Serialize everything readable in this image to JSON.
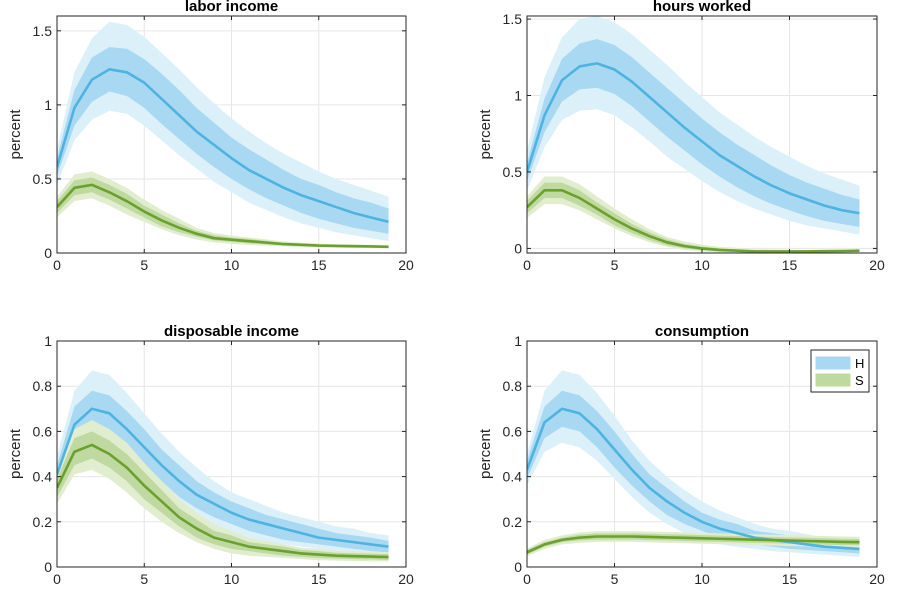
{
  "figure": {
    "colors": {
      "H_line": "#4fb3e0",
      "H_band_inner": "#a9d9f2",
      "H_band_outer": "#dcf0fa",
      "S_line": "#6aa12e",
      "S_band_inner": "#bfd9a0",
      "S_band_outer": "#e1edcf",
      "grid": "#e6e6e6",
      "axis": "#262626"
    },
    "legend": {
      "entries": [
        "H",
        "S"
      ],
      "panel": 3,
      "placement": "top-right"
    }
  },
  "chart_data": [
    {
      "type": "line",
      "title": "labor income",
      "ylabel": "percent",
      "xlim": [
        0,
        20
      ],
      "ylim": [
        0,
        1.6
      ],
      "xticks": [
        0,
        5,
        10,
        15,
        20
      ],
      "yticks": [
        0,
        0.5,
        1,
        1.5
      ],
      "ytick_labels": [
        "0",
        "0.5",
        "1",
        "1.5"
      ],
      "grid": true,
      "x": [
        0,
        1,
        2,
        3,
        4,
        5,
        6,
        7,
        8,
        9,
        10,
        11,
        12,
        13,
        14,
        15,
        16,
        17,
        18,
        19
      ],
      "series": [
        {
          "name": "H",
          "mean": [
            0.58,
            0.98,
            1.17,
            1.24,
            1.22,
            1.15,
            1.04,
            0.93,
            0.82,
            0.73,
            0.64,
            0.56,
            0.5,
            0.44,
            0.39,
            0.35,
            0.31,
            0.27,
            0.24,
            0.21
          ],
          "inner_lo": [
            0.52,
            0.86,
            1.02,
            1.09,
            1.06,
            0.98,
            0.87,
            0.77,
            0.67,
            0.58,
            0.5,
            0.43,
            0.37,
            0.32,
            0.27,
            0.23,
            0.2,
            0.17,
            0.15,
            0.13
          ],
          "inner_hi": [
            0.64,
            1.1,
            1.32,
            1.39,
            1.38,
            1.31,
            1.21,
            1.1,
            0.98,
            0.88,
            0.78,
            0.7,
            0.63,
            0.56,
            0.5,
            0.46,
            0.41,
            0.37,
            0.34,
            0.3
          ],
          "outer_lo": [
            0.46,
            0.76,
            0.9,
            0.96,
            0.94,
            0.86,
            0.76,
            0.66,
            0.57,
            0.48,
            0.41,
            0.34,
            0.29,
            0.24,
            0.2,
            0.17,
            0.14,
            0.12,
            0.1,
            0.08
          ],
          "outer_hi": [
            0.7,
            1.22,
            1.45,
            1.56,
            1.54,
            1.46,
            1.35,
            1.24,
            1.12,
            1.01,
            0.91,
            0.82,
            0.74,
            0.67,
            0.61,
            0.55,
            0.5,
            0.46,
            0.42,
            0.38
          ]
        },
        {
          "name": "S",
          "mean": [
            0.31,
            0.44,
            0.46,
            0.41,
            0.35,
            0.28,
            0.22,
            0.17,
            0.13,
            0.1,
            0.09,
            0.08,
            0.07,
            0.06,
            0.055,
            0.05,
            0.048,
            0.046,
            0.044,
            0.042
          ],
          "inner_lo": [
            0.27,
            0.39,
            0.41,
            0.36,
            0.3,
            0.24,
            0.18,
            0.14,
            0.11,
            0.085,
            0.075,
            0.065,
            0.058,
            0.051,
            0.047,
            0.043,
            0.041,
            0.039,
            0.037,
            0.036
          ],
          "inner_hi": [
            0.35,
            0.49,
            0.51,
            0.46,
            0.4,
            0.32,
            0.26,
            0.2,
            0.15,
            0.12,
            0.105,
            0.095,
            0.082,
            0.069,
            0.063,
            0.057,
            0.055,
            0.053,
            0.051,
            0.048
          ],
          "outer_lo": [
            0.24,
            0.35,
            0.37,
            0.32,
            0.26,
            0.21,
            0.16,
            0.12,
            0.09,
            0.072,
            0.062,
            0.055,
            0.049,
            0.044,
            0.041,
            0.038,
            0.036,
            0.034,
            0.032,
            0.031
          ],
          "outer_hi": [
            0.38,
            0.53,
            0.55,
            0.5,
            0.44,
            0.36,
            0.29,
            0.23,
            0.17,
            0.135,
            0.118,
            0.105,
            0.092,
            0.078,
            0.07,
            0.063,
            0.06,
            0.058,
            0.056,
            0.053
          ]
        }
      ]
    },
    {
      "type": "line",
      "title": "hours worked",
      "ylabel": "percent",
      "xlim": [
        0,
        20
      ],
      "ylim": [
        -0.03,
        1.52
      ],
      "xticks": [
        0,
        5,
        10,
        15,
        20
      ],
      "yticks": [
        0,
        0.5,
        1,
        1.5
      ],
      "ytick_labels": [
        "0",
        "0.5",
        "1",
        "1.5"
      ],
      "grid": true,
      "x": [
        0,
        1,
        2,
        3,
        4,
        5,
        6,
        7,
        8,
        9,
        10,
        11,
        12,
        13,
        14,
        15,
        16,
        17,
        18,
        19
      ],
      "series": [
        {
          "name": "H",
          "mean": [
            0.5,
            0.87,
            1.1,
            1.19,
            1.21,
            1.17,
            1.09,
            0.99,
            0.89,
            0.79,
            0.7,
            0.61,
            0.54,
            0.47,
            0.41,
            0.36,
            0.32,
            0.28,
            0.25,
            0.23
          ],
          "inner_lo": [
            0.44,
            0.76,
            0.96,
            1.04,
            1.05,
            1.01,
            0.93,
            0.83,
            0.73,
            0.64,
            0.55,
            0.47,
            0.4,
            0.34,
            0.29,
            0.25,
            0.21,
            0.18,
            0.16,
            0.14
          ],
          "inner_hi": [
            0.56,
            0.98,
            1.24,
            1.34,
            1.37,
            1.33,
            1.25,
            1.15,
            1.05,
            0.95,
            0.85,
            0.76,
            0.68,
            0.61,
            0.54,
            0.48,
            0.43,
            0.39,
            0.35,
            0.32
          ],
          "outer_lo": [
            0.38,
            0.66,
            0.84,
            0.9,
            0.91,
            0.87,
            0.79,
            0.7,
            0.6,
            0.52,
            0.44,
            0.37,
            0.31,
            0.26,
            0.22,
            0.18,
            0.15,
            0.13,
            0.11,
            0.09
          ],
          "outer_hi": [
            0.64,
            1.12,
            1.38,
            1.5,
            1.52,
            1.48,
            1.4,
            1.3,
            1.2,
            1.09,
            0.99,
            0.89,
            0.81,
            0.73,
            0.66,
            0.6,
            0.54,
            0.49,
            0.45,
            0.41
          ]
        },
        {
          "name": "S",
          "mean": [
            0.27,
            0.38,
            0.38,
            0.33,
            0.26,
            0.19,
            0.13,
            0.08,
            0.04,
            0.015,
            0.0,
            -0.01,
            -0.015,
            -0.02,
            -0.02,
            -0.02,
            -0.02,
            -0.018,
            -0.017,
            -0.015
          ],
          "inner_lo": [
            0.23,
            0.33,
            0.33,
            0.28,
            0.22,
            0.15,
            0.1,
            0.055,
            0.02,
            0.0,
            -0.012,
            -0.02,
            -0.024,
            -0.027,
            -0.027,
            -0.026,
            -0.025,
            -0.023,
            -0.022,
            -0.02
          ],
          "inner_hi": [
            0.31,
            0.43,
            0.43,
            0.38,
            0.3,
            0.23,
            0.16,
            0.105,
            0.06,
            0.03,
            0.012,
            0.0,
            -0.006,
            -0.013,
            -0.013,
            -0.014,
            -0.015,
            -0.013,
            -0.012,
            -0.01
          ],
          "outer_lo": [
            0.2,
            0.29,
            0.29,
            0.25,
            0.19,
            0.13,
            0.08,
            0.04,
            0.01,
            -0.01,
            -0.02,
            -0.027,
            -0.03,
            -0.03,
            -0.03,
            -0.03,
            -0.03,
            -0.027,
            -0.026,
            -0.024
          ],
          "outer_hi": [
            0.34,
            0.47,
            0.47,
            0.42,
            0.34,
            0.26,
            0.19,
            0.125,
            0.075,
            0.045,
            0.025,
            0.01,
            0.004,
            -0.006,
            -0.007,
            -0.009,
            -0.01,
            -0.009,
            -0.008,
            -0.006
          ]
        }
      ]
    },
    {
      "type": "line",
      "title": "disposable income",
      "ylabel": "percent",
      "xlim": [
        0,
        20
      ],
      "ylim": [
        0,
        1
      ],
      "xticks": [
        0,
        5,
        10,
        15,
        20
      ],
      "yticks": [
        0,
        0.2,
        0.4,
        0.6,
        0.8,
        1
      ],
      "ytick_labels": [
        "0",
        "0.2",
        "0.4",
        "0.6",
        "0.8",
        "1"
      ],
      "grid": true,
      "x": [
        0,
        1,
        2,
        3,
        4,
        5,
        6,
        7,
        8,
        9,
        10,
        11,
        12,
        13,
        14,
        15,
        16,
        17,
        18,
        19
      ],
      "series": [
        {
          "name": "H",
          "mean": [
            0.41,
            0.63,
            0.7,
            0.68,
            0.61,
            0.53,
            0.45,
            0.38,
            0.32,
            0.28,
            0.24,
            0.21,
            0.19,
            0.17,
            0.15,
            0.13,
            0.12,
            0.11,
            0.1,
            0.09
          ],
          "inner_lo": [
            0.37,
            0.56,
            0.62,
            0.6,
            0.53,
            0.45,
            0.38,
            0.31,
            0.26,
            0.22,
            0.19,
            0.16,
            0.14,
            0.12,
            0.11,
            0.1,
            0.09,
            0.08,
            0.07,
            0.065
          ],
          "inner_hi": [
            0.45,
            0.71,
            0.78,
            0.76,
            0.69,
            0.61,
            0.52,
            0.45,
            0.38,
            0.33,
            0.29,
            0.26,
            0.23,
            0.21,
            0.19,
            0.17,
            0.15,
            0.14,
            0.13,
            0.115
          ],
          "outer_lo": [
            0.34,
            0.5,
            0.55,
            0.53,
            0.47,
            0.4,
            0.33,
            0.27,
            0.22,
            0.18,
            0.15,
            0.13,
            0.11,
            0.1,
            0.09,
            0.08,
            0.07,
            0.06,
            0.055,
            0.05
          ],
          "outer_hi": [
            0.49,
            0.78,
            0.87,
            0.85,
            0.77,
            0.68,
            0.59,
            0.51,
            0.44,
            0.38,
            0.33,
            0.3,
            0.27,
            0.24,
            0.22,
            0.2,
            0.18,
            0.17,
            0.15,
            0.14
          ]
        },
        {
          "name": "S",
          "mean": [
            0.35,
            0.51,
            0.54,
            0.5,
            0.44,
            0.36,
            0.29,
            0.22,
            0.17,
            0.13,
            0.11,
            0.09,
            0.08,
            0.07,
            0.06,
            0.055,
            0.05,
            0.048,
            0.046,
            0.044
          ],
          "inner_lo": [
            0.31,
            0.45,
            0.48,
            0.44,
            0.38,
            0.3,
            0.24,
            0.18,
            0.13,
            0.1,
            0.08,
            0.07,
            0.06,
            0.05,
            0.045,
            0.04,
            0.037,
            0.035,
            0.033,
            0.031
          ],
          "inner_hi": [
            0.39,
            0.57,
            0.6,
            0.56,
            0.5,
            0.42,
            0.34,
            0.26,
            0.21,
            0.16,
            0.14,
            0.11,
            0.1,
            0.09,
            0.075,
            0.07,
            0.063,
            0.061,
            0.059,
            0.057
          ],
          "outer_lo": [
            0.28,
            0.41,
            0.43,
            0.39,
            0.33,
            0.26,
            0.2,
            0.15,
            0.11,
            0.08,
            0.06,
            0.05,
            0.045,
            0.04,
            0.035,
            0.03,
            0.028,
            0.026,
            0.025,
            0.024
          ],
          "outer_hi": [
            0.42,
            0.61,
            0.65,
            0.61,
            0.55,
            0.46,
            0.38,
            0.3,
            0.24,
            0.19,
            0.16,
            0.13,
            0.115,
            0.1,
            0.085,
            0.08,
            0.072,
            0.07,
            0.067,
            0.064
          ]
        }
      ]
    },
    {
      "type": "line",
      "title": "consumption",
      "ylabel": "percent",
      "xlim": [
        0,
        20
      ],
      "ylim": [
        0,
        1
      ],
      "xticks": [
        0,
        5,
        10,
        15,
        20
      ],
      "yticks": [
        0,
        0.2,
        0.4,
        0.6,
        0.8,
        1
      ],
      "ytick_labels": [
        "0",
        "0.2",
        "0.4",
        "0.6",
        "0.8",
        "1"
      ],
      "grid": true,
      "legend": [
        "H",
        "S"
      ],
      "x": [
        0,
        1,
        2,
        3,
        4,
        5,
        6,
        7,
        8,
        9,
        10,
        11,
        12,
        13,
        14,
        15,
        16,
        17,
        18,
        19
      ],
      "series": [
        {
          "name": "H",
          "mean": [
            0.43,
            0.64,
            0.7,
            0.68,
            0.61,
            0.52,
            0.43,
            0.35,
            0.29,
            0.24,
            0.2,
            0.17,
            0.15,
            0.13,
            0.12,
            0.11,
            0.1,
            0.09,
            0.085,
            0.08
          ],
          "inner_lo": [
            0.39,
            0.57,
            0.62,
            0.6,
            0.53,
            0.44,
            0.36,
            0.29,
            0.23,
            0.19,
            0.16,
            0.13,
            0.11,
            0.1,
            0.09,
            0.08,
            0.075,
            0.07,
            0.065,
            0.06
          ],
          "inner_hi": [
            0.47,
            0.71,
            0.78,
            0.76,
            0.69,
            0.6,
            0.5,
            0.41,
            0.35,
            0.29,
            0.24,
            0.21,
            0.19,
            0.16,
            0.15,
            0.14,
            0.125,
            0.11,
            0.105,
            0.1
          ],
          "outer_lo": [
            0.36,
            0.51,
            0.55,
            0.53,
            0.47,
            0.39,
            0.31,
            0.24,
            0.19,
            0.15,
            0.12,
            0.1,
            0.09,
            0.08,
            0.07,
            0.065,
            0.06,
            0.055,
            0.05,
            0.045
          ],
          "outer_hi": [
            0.5,
            0.78,
            0.87,
            0.85,
            0.77,
            0.67,
            0.56,
            0.47,
            0.4,
            0.34,
            0.29,
            0.25,
            0.22,
            0.19,
            0.17,
            0.16,
            0.145,
            0.13,
            0.12,
            0.115
          ]
        },
        {
          "name": "S",
          "mean": [
            0.065,
            0.1,
            0.12,
            0.13,
            0.135,
            0.135,
            0.135,
            0.133,
            0.131,
            0.129,
            0.127,
            0.125,
            0.123,
            0.121,
            0.119,
            0.117,
            0.115,
            0.113,
            0.111,
            0.11
          ],
          "inner_lo": [
            0.055,
            0.09,
            0.11,
            0.117,
            0.121,
            0.121,
            0.121,
            0.119,
            0.117,
            0.115,
            0.113,
            0.111,
            0.109,
            0.107,
            0.105,
            0.103,
            0.101,
            0.099,
            0.097,
            0.096
          ],
          "inner_hi": [
            0.075,
            0.11,
            0.13,
            0.143,
            0.149,
            0.149,
            0.149,
            0.147,
            0.145,
            0.143,
            0.141,
            0.139,
            0.137,
            0.135,
            0.133,
            0.131,
            0.129,
            0.127,
            0.125,
            0.124
          ],
          "outer_lo": [
            0.048,
            0.08,
            0.1,
            0.107,
            0.111,
            0.111,
            0.111,
            0.109,
            0.107,
            0.105,
            0.103,
            0.101,
            0.099,
            0.097,
            0.095,
            0.093,
            0.091,
            0.089,
            0.087,
            0.086
          ],
          "outer_hi": [
            0.082,
            0.12,
            0.14,
            0.153,
            0.159,
            0.159,
            0.159,
            0.157,
            0.155,
            0.153,
            0.151,
            0.149,
            0.147,
            0.145,
            0.143,
            0.141,
            0.139,
            0.137,
            0.135,
            0.134
          ]
        }
      ]
    }
  ]
}
